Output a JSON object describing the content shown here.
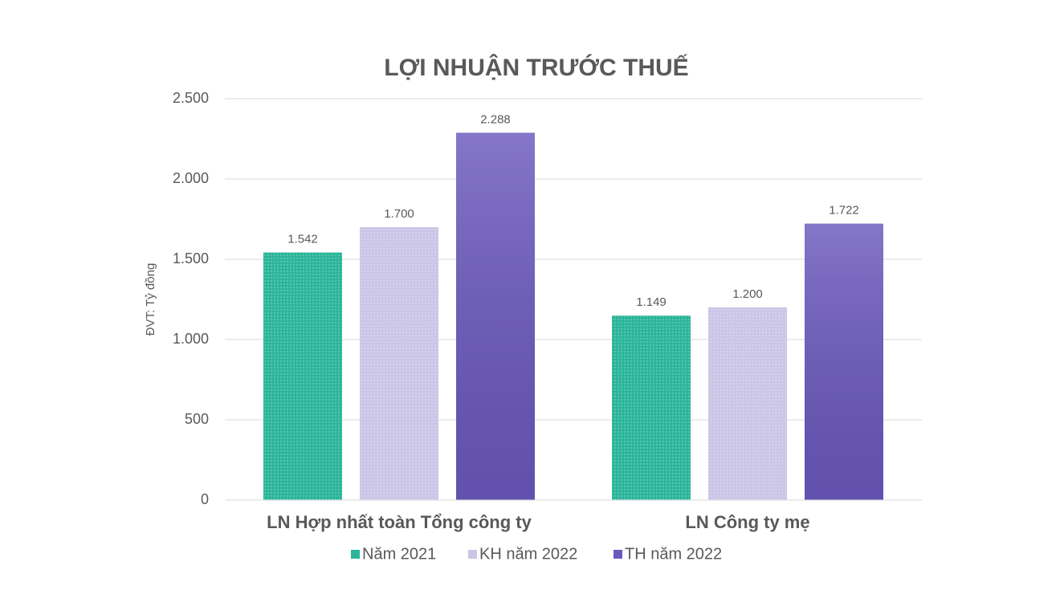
{
  "chart_data": {
    "type": "bar",
    "title": "LỢI NHUẬN TRƯỚC THUẾ",
    "y_label": "ĐVT: Tỷ đồng",
    "categories": [
      "LN Hợp nhất toàn Tổng công ty",
      "LN Công ty mẹ"
    ],
    "series": [
      {
        "name": "Năm 2021",
        "color": "#2bb59a",
        "values": [
          1542,
          1149
        ],
        "value_labels": [
          "1.542",
          "1.149"
        ]
      },
      {
        "name": "KH năm 2022",
        "color": "#cbc5e6",
        "values": [
          1700,
          1200
        ],
        "value_labels": [
          "1.700",
          "1.200"
        ]
      },
      {
        "name": "TH năm 2022",
        "color": "#6a58bd",
        "values": [
          2288,
          1722
        ],
        "value_labels": [
          "2.288",
          "1.722"
        ]
      }
    ],
    "ylim": [
      0,
      2500
    ],
    "yticks": [
      0,
      500,
      {
        "value": 1000,
        "label": "1.000"
      },
      {
        "value": 1500,
        "label": "1.500"
      },
      {
        "value": 2000,
        "label": "2.000"
      },
      {
        "value": 2500,
        "label": "2.500"
      }
    ],
    "grid": true,
    "legend": "bottom"
  }
}
